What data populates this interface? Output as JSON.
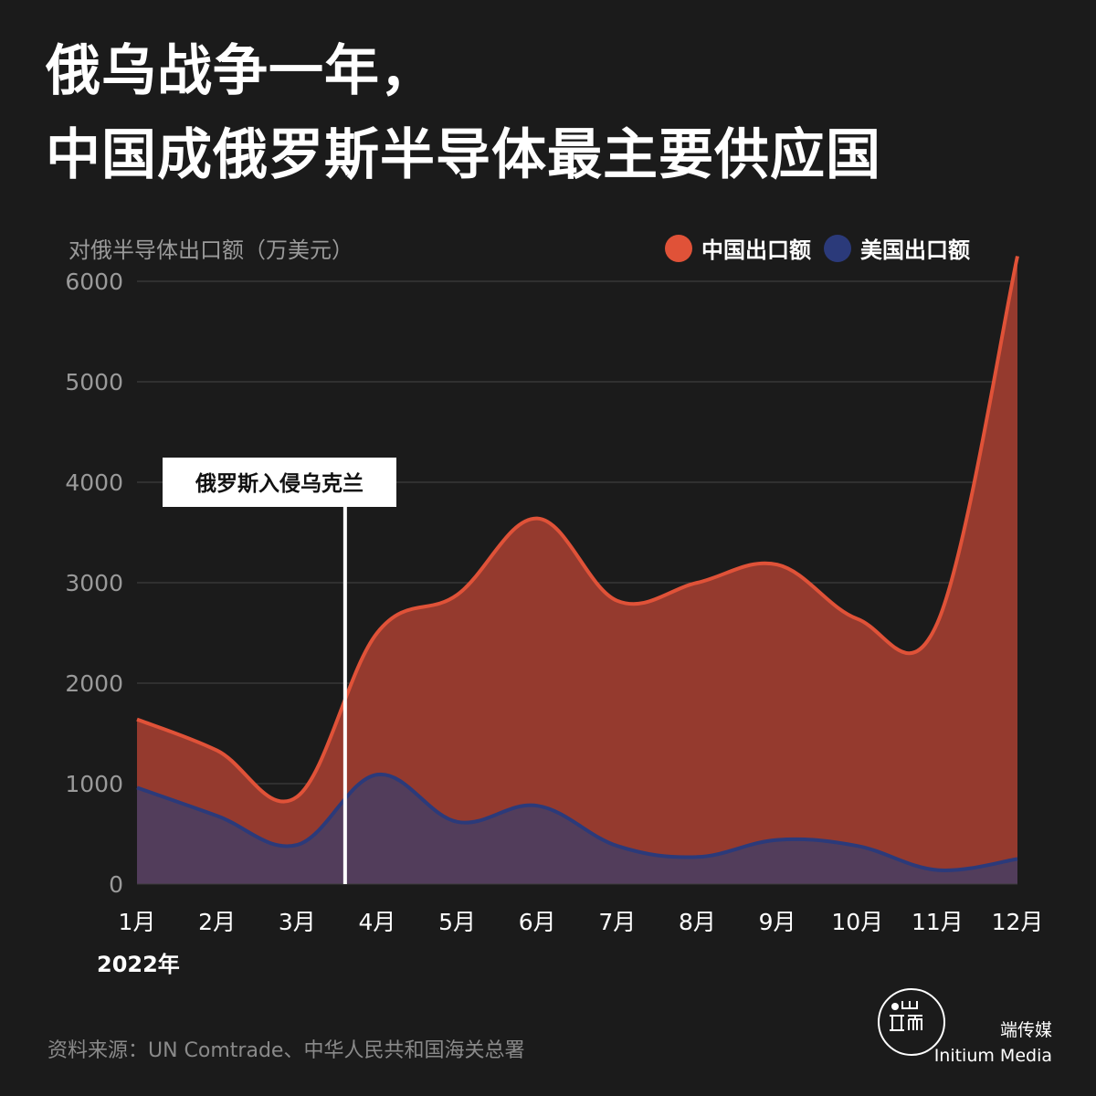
{
  "title": {
    "line1": "俄乌战争一年，",
    "line2": "中国成俄罗斯半导体最主要供应国"
  },
  "legend": {
    "china": "中国出口额",
    "us": "美国出口额"
  },
  "annotation": "俄罗斯入侵乌克兰",
  "year_label": "2022年",
  "source": "资料来源：UN Comtrade、中华人民共和国海关总署",
  "brand": {
    "name_cn": "端传媒",
    "name_en": "Initium Media"
  },
  "colors": {
    "background": "#1b1b1b",
    "china_line": "#e05238",
    "china_fill": "#953a2e",
    "us_line": "#2b3a7a",
    "us_fill": "#523d5b",
    "grid": "#444444"
  },
  "chart_data": {
    "type": "area",
    "ylabel": "对俄半导体出口额（万美元）",
    "ylim": [
      0,
      6000
    ],
    "yticks": [
      "0",
      "1000",
      "2000",
      "3000",
      "4000",
      "5000",
      "6000"
    ],
    "categories": [
      "1月",
      "2月",
      "3月",
      "4月",
      "5月",
      "6月",
      "7月",
      "8月",
      "9月",
      "10月",
      "11月",
      "12月"
    ],
    "series": [
      {
        "name": "中国出口额",
        "values": [
          1640,
          1330,
          870,
          2500,
          2880,
          3640,
          2820,
          3000,
          3180,
          2640,
          2600,
          6250
        ]
      },
      {
        "name": "美国出口额",
        "values": [
          960,
          680,
          390,
          1090,
          620,
          780,
          380,
          270,
          440,
          380,
          140,
          250
        ]
      }
    ],
    "event": {
      "label": "俄罗斯入侵乌克兰",
      "x": 2.6
    },
    "grid": true,
    "legend_position": "top-right"
  }
}
